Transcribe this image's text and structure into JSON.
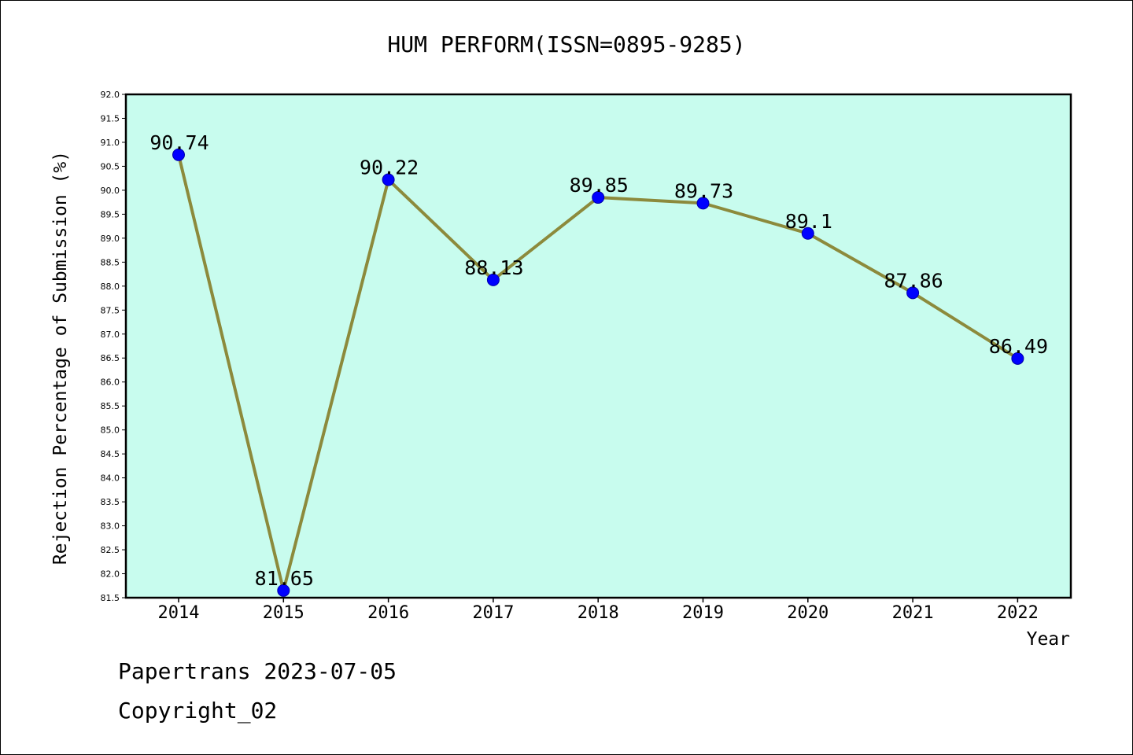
{
  "chart_data": {
    "type": "line",
    "title": "HUM PERFORM(ISSN=0895-9285)",
    "xlabel": "Year",
    "ylabel": "Rejection Percentage of Submission (%)",
    "categories": [
      "2014",
      "2015",
      "2016",
      "2017",
      "2018",
      "2019",
      "2020",
      "2021",
      "2022"
    ],
    "values": [
      90.74,
      81.65,
      90.22,
      88.13,
      89.85,
      89.73,
      89.1,
      87.86,
      86.49
    ],
    "data_labels": [
      "90.74",
      "81.65",
      "90.22",
      "88.13",
      "89.85",
      "89.73",
      "89.1",
      "87.86",
      "86.49"
    ],
    "ylim": [
      81.5,
      92.0
    ],
    "yticks": [
      "81.5",
      "82.0",
      "82.5",
      "83.0",
      "83.5",
      "84.0",
      "84.5",
      "85.0",
      "85.5",
      "86.0",
      "86.5",
      "87.0",
      "87.5",
      "88.0",
      "88.5",
      "89.0",
      "89.5",
      "90.0",
      "90.5",
      "91.0",
      "91.5",
      "92.0"
    ],
    "grid": false,
    "colors": {
      "plot_background": "#c8fcee",
      "line": "#8c8a3c",
      "marker": "#0000ff"
    }
  },
  "footer": {
    "line1": "Papertrans 2023-07-05",
    "line2": "Copyright_02"
  }
}
